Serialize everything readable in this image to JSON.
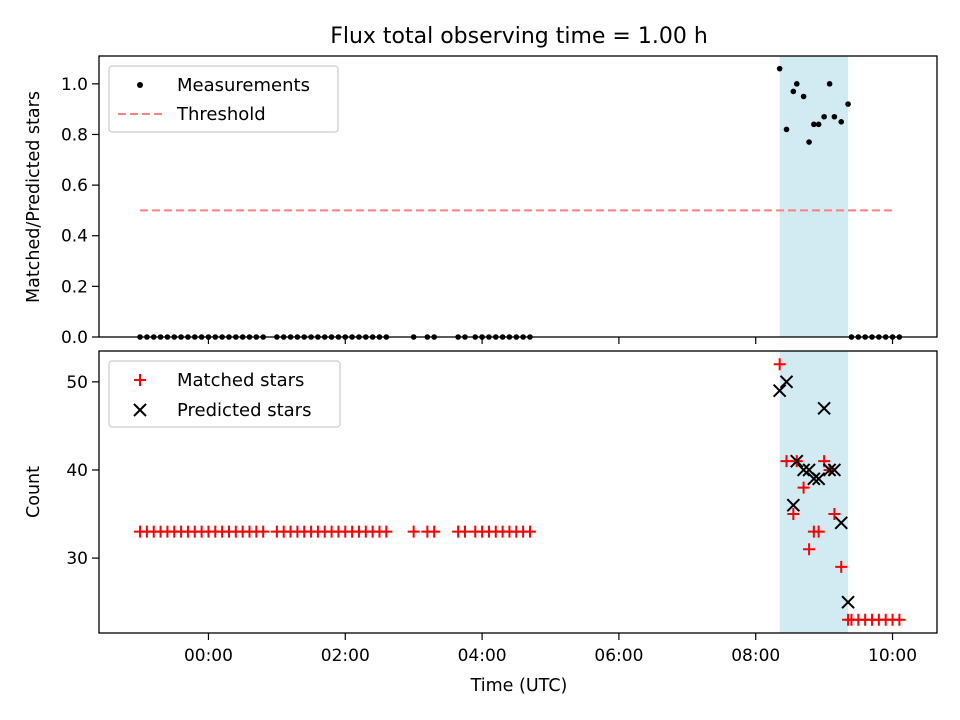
{
  "figure_title": "Flux total observing time = 1.00 h",
  "colors": {
    "measurement": "#000000",
    "threshold": "#ff7f7f",
    "matched": "#ff0000",
    "predicted": "#000000",
    "span": "#add8e6"
  },
  "chart_data": [
    {
      "type": "scatter",
      "title": "Flux total observing time = 1.00 h",
      "xlabel": "",
      "ylabel": "Matched/Predicted stars",
      "x_unit": "hours UTC (negative = previous day)",
      "xlim": [
        -1.6,
        10.65
      ],
      "ylim": [
        0,
        1.11
      ],
      "yticks": [
        0.0,
        0.2,
        0.4,
        0.6,
        0.8,
        1.0
      ],
      "ytick_labels": [
        "0.0",
        "0.2",
        "0.4",
        "0.6",
        "0.8",
        "1.0"
      ],
      "xticks": [
        0,
        2,
        4,
        6,
        8,
        10
      ],
      "highlight_span": [
        8.35,
        9.35
      ],
      "legend": {
        "position": "upper-left",
        "entries": [
          "Measurements",
          "Threshold"
        ]
      },
      "series": [
        {
          "name": "Measurements",
          "style": "dots",
          "x": [
            -1.0,
            -0.9,
            -0.8,
            -0.7,
            -0.6,
            -0.5,
            -0.4,
            -0.3,
            -0.2,
            -0.1,
            0.0,
            0.1,
            0.2,
            0.3,
            0.4,
            0.5,
            0.6,
            0.7,
            0.8,
            1.0,
            1.1,
            1.2,
            1.3,
            1.4,
            1.5,
            1.6,
            1.7,
            1.8,
            1.9,
            2.0,
            2.1,
            2.2,
            2.3,
            2.4,
            2.5,
            2.6,
            3.0,
            3.2,
            3.3,
            3.65,
            3.75,
            3.9,
            4.0,
            4.1,
            4.2,
            4.3,
            4.4,
            4.5,
            4.6,
            4.7,
            8.35,
            8.45,
            8.55,
            8.6,
            8.7,
            8.78,
            8.85,
            8.92,
            9.0,
            9.08,
            9.15,
            9.25,
            9.35,
            9.4,
            9.5,
            9.6,
            9.7,
            9.8,
            9.9,
            10.0,
            10.1
          ],
          "y": [
            0,
            0,
            0,
            0,
            0,
            0,
            0,
            0,
            0,
            0,
            0,
            0,
            0,
            0,
            0,
            0,
            0,
            0,
            0,
            0,
            0,
            0,
            0,
            0,
            0,
            0,
            0,
            0,
            0,
            0,
            0,
            0,
            0,
            0,
            0,
            0,
            0,
            0,
            0,
            0,
            0,
            0,
            0,
            0,
            0,
            0,
            0,
            0,
            0,
            0,
            1.06,
            0.82,
            0.97,
            1.0,
            0.95,
            0.77,
            0.84,
            0.84,
            0.87,
            1.0,
            0.87,
            0.85,
            0.92,
            0,
            0,
            0,
            0,
            0,
            0,
            0,
            0
          ]
        },
        {
          "name": "Threshold",
          "style": "dashed-line",
          "x": [
            -1.0,
            10.05
          ],
          "y": [
            0.5,
            0.5
          ]
        }
      ]
    },
    {
      "type": "scatter",
      "xlabel": "Time (UTC)",
      "ylabel": "Count",
      "xlim": [
        -1.6,
        10.65
      ],
      "ylim": [
        21.5,
        53.5
      ],
      "yticks": [
        30,
        40,
        50
      ],
      "ytick_labels": [
        "30",
        "40",
        "50"
      ],
      "xticks": [
        0,
        2,
        4,
        6,
        8,
        10
      ],
      "xtick_labels": [
        "00:00",
        "02:00",
        "04:00",
        "06:00",
        "08:00",
        "10:00"
      ],
      "highlight_span": [
        8.35,
        9.35
      ],
      "legend": {
        "position": "upper-left",
        "entries": [
          "Matched stars",
          "Predicted stars"
        ]
      },
      "series": [
        {
          "name": "Matched stars",
          "marker": "plus",
          "x": [
            -1.0,
            -0.9,
            -0.8,
            -0.7,
            -0.6,
            -0.5,
            -0.4,
            -0.3,
            -0.2,
            -0.1,
            0.0,
            0.1,
            0.2,
            0.3,
            0.4,
            0.5,
            0.6,
            0.7,
            0.8,
            1.0,
            1.1,
            1.2,
            1.3,
            1.4,
            1.5,
            1.6,
            1.7,
            1.8,
            1.9,
            2.0,
            2.1,
            2.2,
            2.3,
            2.4,
            2.5,
            2.6,
            3.0,
            3.2,
            3.3,
            3.65,
            3.75,
            3.9,
            4.0,
            4.1,
            4.2,
            4.3,
            4.4,
            4.5,
            4.6,
            4.7,
            8.35,
            8.45,
            8.55,
            8.6,
            8.7,
            8.78,
            8.85,
            8.92,
            9.0,
            9.08,
            9.15,
            9.25,
            9.35,
            9.4,
            9.5,
            9.6,
            9.7,
            9.8,
            9.9,
            10.0,
            10.1
          ],
          "y": [
            33,
            33,
            33,
            33,
            33,
            33,
            33,
            33,
            33,
            33,
            33,
            33,
            33,
            33,
            33,
            33,
            33,
            33,
            33,
            33,
            33,
            33,
            33,
            33,
            33,
            33,
            33,
            33,
            33,
            33,
            33,
            33,
            33,
            33,
            33,
            33,
            33,
            33,
            33,
            33,
            33,
            33,
            33,
            33,
            33,
            33,
            33,
            33,
            33,
            33,
            52,
            41,
            35,
            41,
            38,
            31,
            33,
            33,
            41,
            40,
            35,
            29,
            23,
            23,
            23,
            23,
            23,
            23,
            23,
            23,
            23
          ]
        },
        {
          "name": "Predicted stars",
          "marker": "x",
          "x": [
            8.35,
            8.45,
            8.55,
            8.6,
            8.7,
            8.78,
            8.85,
            8.92,
            9.0,
            9.08,
            9.15,
            9.25,
            9.35
          ],
          "y": [
            49,
            50,
            36,
            41,
            40,
            40,
            39,
            39,
            47,
            40,
            40,
            34,
            25
          ]
        }
      ]
    }
  ]
}
